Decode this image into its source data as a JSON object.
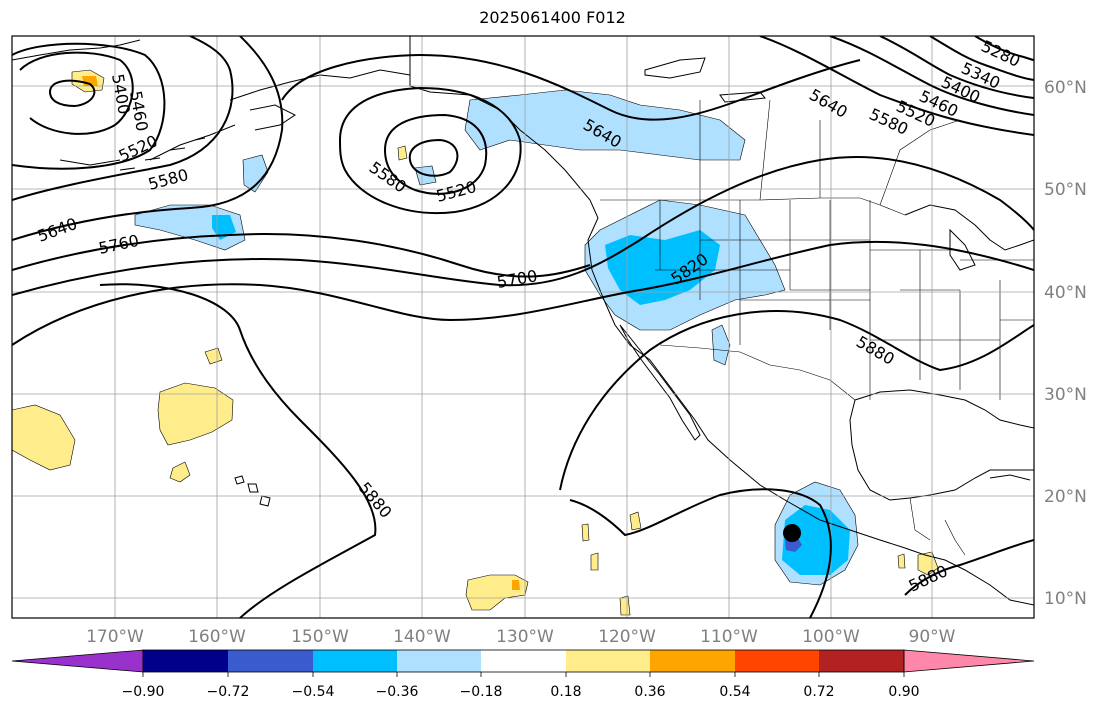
{
  "title": "2025061400 F012",
  "map": {
    "lon_range": [
      -180,
      -80
    ],
    "lat_range": [
      8,
      65
    ],
    "lat_labels": [
      "60°N",
      "50°N",
      "40°N",
      "30°N",
      "20°N",
      "10°N"
    ],
    "lon_labels": [
      "170°W",
      "160°W",
      "150°W",
      "140°W",
      "130°W",
      "120°W",
      "110°W",
      "100°W",
      "90°W"
    ],
    "contour_labels": [
      "5280",
      "5340",
      "5400",
      "5460",
      "5520",
      "5580",
      "5640",
      "5400",
      "5460",
      "5520",
      "5580",
      "5640",
      "5760",
      "5580",
      "5520",
      "5640",
      "5700",
      "5820",
      "5880",
      "5880",
      "5880"
    ],
    "storm_marker": {
      "lon": -103.5,
      "lat": 16.3
    },
    "colors": {
      "coast": "#000000",
      "contour": "#000000",
      "grid": "#a0a0a0"
    }
  },
  "colorbar": {
    "tick_labels": [
      "−0.90",
      "−0.72",
      "−0.54",
      "−0.36",
      "−0.18",
      "0.18",
      "0.36",
      "0.54",
      "0.72",
      "0.90"
    ],
    "colors": [
      "#9932cc",
      "#00008b",
      "#3a5bcd",
      "#00bfff",
      "#b0e0ff",
      "#ffffff",
      "#ffec8b",
      "#ffa500",
      "#ff4500",
      "#b22222",
      "#ff88aa"
    ]
  }
}
